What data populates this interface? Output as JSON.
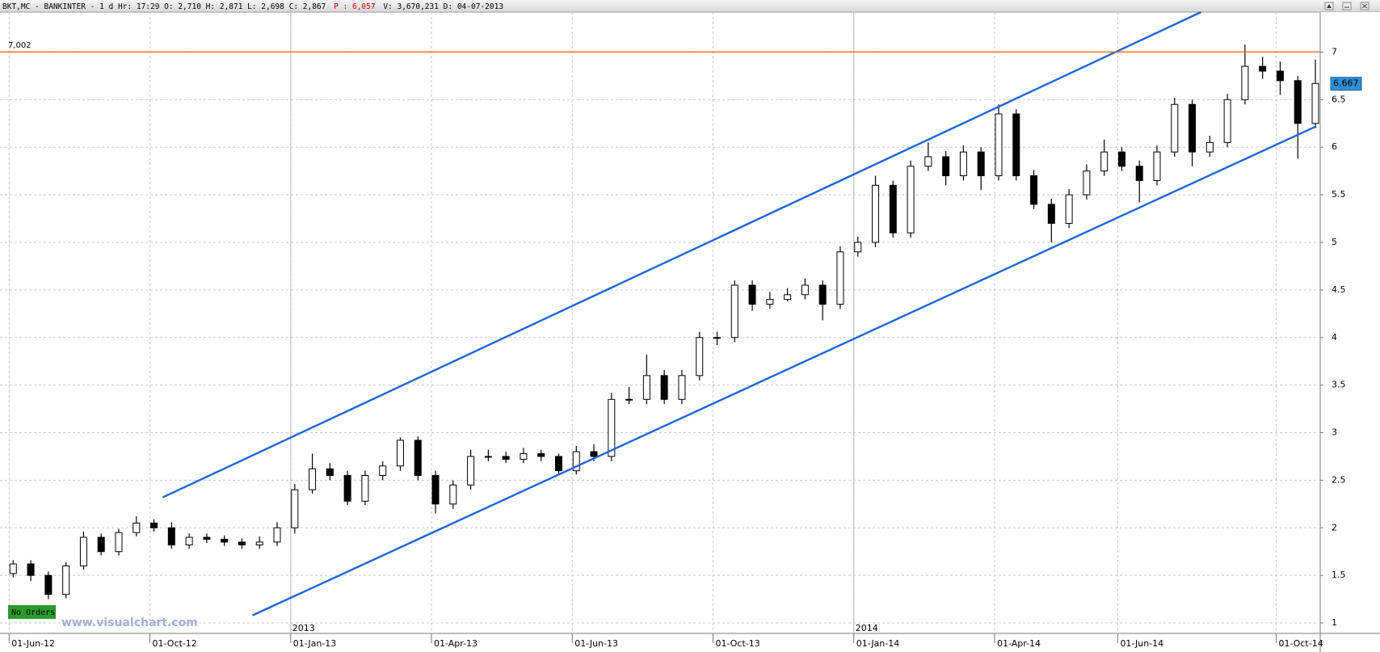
{
  "chart_data": {
    "type": "candlestick",
    "header_segments": [
      {
        "text": "BKT,MC - BANKINTER -  1 d Hr: 17:29 O: 2,710 H: 2,871 L: 2,698 C: 2,867",
        "color": "#000000"
      },
      {
        "text": "P : 6,057",
        "color": "#e00000"
      },
      {
        "text": "V: 3,670,231 D: 04-07-2013",
        "color": "#000000"
      }
    ],
    "categories": [
      "01-Jun-12",
      null,
      null,
      null,
      null,
      null,
      null,
      null,
      "01-Oct-12",
      null,
      null,
      null,
      null,
      null,
      null,
      null,
      "01-Jan-13",
      null,
      null,
      null,
      null,
      null,
      null,
      null,
      "01-Apr-13",
      null,
      null,
      null,
      null,
      null,
      null,
      null,
      "01-Jun-13",
      null,
      null,
      null,
      null,
      null,
      null,
      null,
      "01-Oct-13",
      null,
      null,
      null,
      null,
      null,
      null,
      null,
      "01-Jan-14",
      null,
      null,
      null,
      null,
      null,
      null,
      null,
      "01-Apr-14",
      null,
      null,
      null,
      null,
      null,
      null,
      "01-Jun-14",
      null,
      null,
      null,
      null,
      null,
      null,
      null,
      null,
      "01-Oct-14",
      null,
      null
    ],
    "ohlc": [
      [
        1.52,
        1.66,
        1.48,
        1.62
      ],
      [
        1.62,
        1.66,
        1.44,
        1.5
      ],
      [
        1.5,
        1.54,
        1.25,
        1.3
      ],
      [
        1.3,
        1.64,
        1.26,
        1.6
      ],
      [
        1.6,
        1.96,
        1.56,
        1.9
      ],
      [
        1.9,
        1.94,
        1.71,
        1.75
      ],
      [
        1.75,
        1.99,
        1.71,
        1.95
      ],
      [
        1.95,
        2.12,
        1.91,
        2.05
      ],
      [
        2.05,
        2.09,
        1.96,
        2.0
      ],
      [
        2.0,
        2.06,
        1.78,
        1.82
      ],
      [
        1.82,
        1.94,
        1.78,
        1.9
      ],
      [
        1.9,
        1.94,
        1.84,
        1.88
      ],
      [
        1.88,
        1.92,
        1.81,
        1.85
      ],
      [
        1.85,
        1.89,
        1.78,
        1.82
      ],
      [
        1.82,
        1.91,
        1.78,
        1.85
      ],
      [
        1.85,
        2.06,
        1.81,
        2.0
      ],
      [
        2.0,
        2.46,
        1.94,
        2.4
      ],
      [
        2.4,
        2.78,
        2.36,
        2.62
      ],
      [
        2.62,
        2.68,
        2.5,
        2.55
      ],
      [
        2.55,
        2.6,
        2.24,
        2.28
      ],
      [
        2.28,
        2.6,
        2.24,
        2.55
      ],
      [
        2.55,
        2.7,
        2.5,
        2.65
      ],
      [
        2.65,
        2.95,
        2.6,
        2.92
      ],
      [
        2.92,
        2.96,
        2.5,
        2.55
      ],
      [
        2.55,
        2.6,
        2.15,
        2.25
      ],
      [
        2.25,
        2.5,
        2.2,
        2.45
      ],
      [
        2.45,
        2.82,
        2.4,
        2.75
      ],
      [
        2.75,
        2.82,
        2.7,
        2.75
      ],
      [
        2.75,
        2.8,
        2.68,
        2.72
      ],
      [
        2.72,
        2.84,
        2.68,
        2.78
      ],
      [
        2.78,
        2.82,
        2.7,
        2.75
      ],
      [
        2.75,
        2.78,
        2.55,
        2.6
      ],
      [
        2.6,
        2.86,
        2.56,
        2.8
      ],
      [
        2.8,
        2.88,
        2.7,
        2.75
      ],
      [
        2.75,
        3.42,
        2.7,
        3.35
      ],
      [
        3.35,
        3.48,
        3.3,
        3.35
      ],
      [
        3.35,
        3.82,
        3.3,
        3.6
      ],
      [
        3.6,
        3.66,
        3.3,
        3.35
      ],
      [
        3.35,
        3.66,
        3.3,
        3.6
      ],
      [
        3.6,
        4.06,
        3.55,
        4.0
      ],
      [
        4.0,
        4.06,
        3.92,
        4.0
      ],
      [
        4.0,
        4.6,
        3.95,
        4.55
      ],
      [
        4.55,
        4.6,
        4.28,
        4.35
      ],
      [
        4.35,
        4.48,
        4.3,
        4.4
      ],
      [
        4.4,
        4.52,
        4.38,
        4.45
      ],
      [
        4.45,
        4.62,
        4.4,
        4.55
      ],
      [
        4.55,
        4.6,
        4.18,
        4.35
      ],
      [
        4.35,
        4.96,
        4.3,
        4.9
      ],
      [
        4.9,
        5.06,
        4.85,
        5.0
      ],
      [
        5.0,
        5.7,
        4.95,
        5.6
      ],
      [
        5.6,
        5.65,
        5.05,
        5.1
      ],
      [
        5.1,
        5.86,
        5.05,
        5.8
      ],
      [
        5.8,
        6.05,
        5.75,
        5.9
      ],
      [
        5.9,
        5.96,
        5.6,
        5.7
      ],
      [
        5.7,
        6.02,
        5.65,
        5.95
      ],
      [
        5.95,
        6.0,
        5.55,
        5.7
      ],
      [
        5.7,
        6.45,
        5.65,
        6.35
      ],
      [
        6.35,
        6.4,
        5.65,
        5.7
      ],
      [
        5.7,
        5.76,
        5.35,
        5.4
      ],
      [
        5.4,
        5.46,
        5.0,
        5.2
      ],
      [
        5.2,
        5.56,
        5.15,
        5.5
      ],
      [
        5.5,
        5.82,
        5.45,
        5.75
      ],
      [
        5.75,
        6.08,
        5.7,
        5.95
      ],
      [
        5.95,
        6.0,
        5.75,
        5.8
      ],
      [
        5.8,
        5.86,
        5.42,
        5.65
      ],
      [
        5.65,
        6.02,
        5.6,
        5.95
      ],
      [
        5.95,
        6.52,
        5.9,
        6.45
      ],
      [
        6.45,
        6.5,
        5.8,
        5.95
      ],
      [
        5.95,
        6.12,
        5.9,
        6.05
      ],
      [
        6.05,
        6.56,
        6.0,
        6.5
      ],
      [
        6.5,
        7.08,
        6.45,
        6.85
      ],
      [
        6.85,
        6.95,
        6.72,
        6.8
      ],
      [
        6.8,
        6.9,
        6.55,
        6.7
      ],
      [
        6.7,
        6.75,
        5.88,
        6.25
      ],
      [
        6.25,
        6.92,
        6.2,
        6.67
      ]
    ],
    "ylim": [
      0.89,
      7.42
    ],
    "yticks": [
      1,
      1.5,
      2,
      2.5,
      3,
      3.5,
      4,
      4.5,
      5,
      5.5,
      6,
      6.5,
      7
    ],
    "grid": true,
    "level_line": {
      "value": 7.002,
      "label": "7,002",
      "color": "#ff5a00"
    },
    "last_price": 6.667,
    "trendlines": [
      {
        "from": {
          "index": 8.5,
          "value": 2.32
        },
        "to": {
          "index": 67.5,
          "value": 7.42
        },
        "color": "#1e63d6"
      },
      {
        "from": {
          "index": 13.6,
          "value": 1.08
        },
        "to": {
          "index": 74.05,
          "value": 6.22
        },
        "color": "#1e63d6"
      }
    ],
    "year_dividers": [
      {
        "at_category": "01-Jan-13",
        "label": "2013"
      },
      {
        "at_category": "01-Jan-14",
        "label": "2014"
      }
    ],
    "badge": "No Orders",
    "watermark": "www.visualchart.com"
  }
}
